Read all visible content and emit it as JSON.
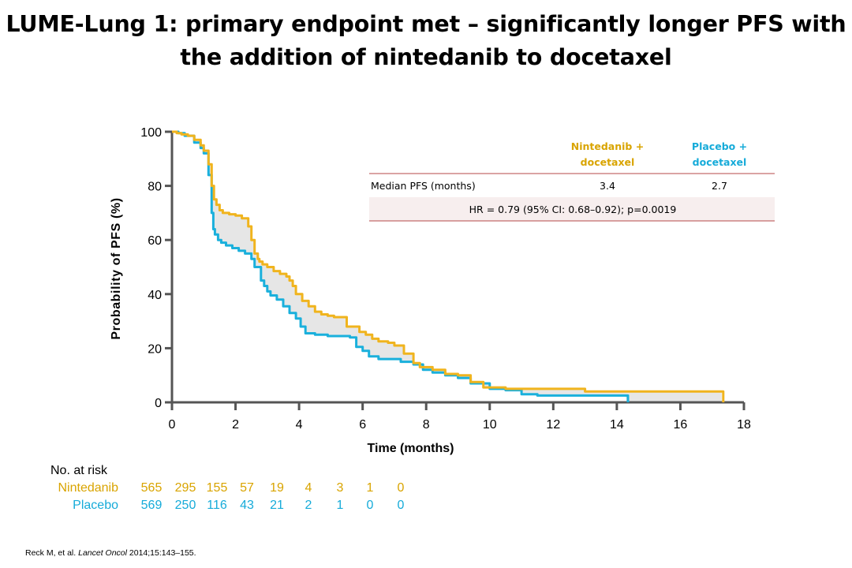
{
  "title_line1": "LUME-Lung 1: primary endpoint met – significantly longer PFS with",
  "title_line2": "the addition of nintedanib to docetaxel",
  "table": {
    "col1_header": "Nintedanib + docetaxel",
    "col2_header": "Placebo + docetaxel",
    "row1_label": "Median PFS (months)",
    "row1_val1": "3.4",
    "row1_val2": "2.7",
    "hr_text": "HR = 0.79 (95% CI: 0.68–0.92); p=0.0019"
  },
  "risk_table": {
    "title": "No. at risk",
    "rows": [
      {
        "label": "Nintedanib",
        "values": [
          "565",
          "295",
          "155",
          "57",
          "19",
          "4",
          "3",
          "1",
          "0"
        ]
      },
      {
        "label": "Placebo",
        "values": [
          "569",
          "250",
          "116",
          "43",
          "21",
          "2",
          "1",
          "0",
          "0"
        ]
      }
    ]
  },
  "reference": {
    "prefix": "Reck M, et al. ",
    "journal": "Lancet Oncol",
    "suffix": " 2014;15:143–155."
  },
  "colors": {
    "nintedanib": "#F0B41E",
    "placebo": "#1AB0DC",
    "shade": "#E6E6E6",
    "axis": "#555555",
    "table_line": "#B54A4A"
  },
  "chart_data": {
    "type": "line",
    "xlabel": "Time (months)",
    "ylabel": "Probability of PFS (%)",
    "xlim": [
      0,
      18
    ],
    "ylim": [
      0,
      100
    ],
    "xticks": [
      0,
      2,
      4,
      6,
      8,
      10,
      12,
      14,
      16,
      18
    ],
    "yticks": [
      0,
      20,
      40,
      60,
      80,
      100
    ],
    "series": [
      {
        "name": "Nintedanib + docetaxel",
        "x": [
          0,
          0.15,
          0.3,
          0.5,
          0.7,
          0.9,
          1.0,
          1.15,
          1.25,
          1.32,
          1.4,
          1.5,
          1.6,
          1.8,
          2.0,
          2.2,
          2.4,
          2.5,
          2.6,
          2.7,
          2.75,
          2.85,
          3.0,
          3.2,
          3.4,
          3.6,
          3.7,
          3.8,
          3.9,
          4.1,
          4.3,
          4.5,
          4.7,
          4.9,
          5.1,
          5.5,
          5.9,
          6.1,
          6.3,
          6.5,
          6.8,
          7.0,
          7.3,
          7.6,
          7.8,
          8.2,
          8.6,
          9.0,
          9.4,
          9.8,
          10.5,
          11.0,
          12.0,
          12.5,
          13.0,
          14.0,
          15.0,
          16.0,
          17.3,
          17.35
        ],
        "y": [
          100,
          99.5,
          99,
          98.5,
          97,
          95,
          93,
          88,
          80,
          75,
          73,
          71,
          70,
          69.5,
          69,
          68,
          65,
          60,
          55,
          53,
          52,
          51,
          50,
          48.5,
          47.5,
          46.5,
          45,
          43,
          40,
          37.5,
          35.5,
          33.5,
          32.5,
          32,
          31.5,
          28,
          26,
          25,
          23.5,
          22.5,
          22,
          21,
          18,
          14.5,
          13,
          12,
          10.5,
          10,
          7.5,
          5.5,
          5,
          5,
          5,
          5,
          4,
          4,
          4,
          4,
          4,
          0
        ]
      },
      {
        "name": "Placebo + docetaxel",
        "x": [
          0,
          0.2,
          0.4,
          0.7,
          0.9,
          1.0,
          1.15,
          1.25,
          1.3,
          1.35,
          1.45,
          1.55,
          1.7,
          1.9,
          2.1,
          2.3,
          2.5,
          2.6,
          2.8,
          2.9,
          3.0,
          3.1,
          3.3,
          3.5,
          3.7,
          3.9,
          4.05,
          4.2,
          4.5,
          4.9,
          5.3,
          5.6,
          5.8,
          6.0,
          6.2,
          6.5,
          6.9,
          7.2,
          7.6,
          7.9,
          8.2,
          8.6,
          9.0,
          9.4,
          10.0,
          10.5,
          11.0,
          11.5,
          12.0,
          13.0,
          14.0,
          14.3,
          14.35
        ],
        "y": [
          100,
          99.5,
          98.5,
          96,
          94,
          92,
          84,
          70,
          64,
          62,
          60,
          59,
          58,
          57,
          56,
          55,
          53,
          50,
          45,
          43,
          41,
          39.5,
          38,
          35.5,
          33,
          31,
          28,
          25.5,
          25,
          24.5,
          24.5,
          24,
          20.5,
          19,
          17,
          16,
          16,
          15,
          14,
          12,
          11,
          10,
          9,
          7,
          5,
          4.5,
          3,
          2.5,
          2.5,
          2.5,
          2.5,
          2.5,
          0
        ]
      }
    ]
  }
}
